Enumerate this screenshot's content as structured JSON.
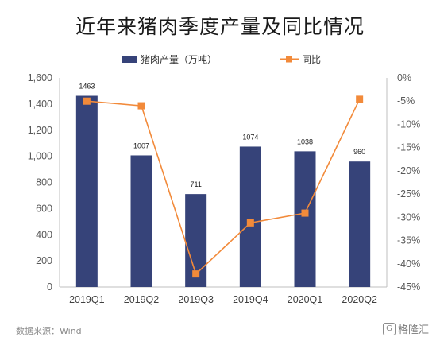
{
  "title": "近年来猪肉季度产量及同比情况",
  "chart_data": {
    "type": "bar",
    "categories": [
      "2019Q1",
      "2019Q2",
      "2019Q3",
      "2019Q4",
      "2020Q1",
      "2020Q2"
    ],
    "series": [
      {
        "name": "猪肉产量（万吨）",
        "type": "bar",
        "axis": "left",
        "color": "#364379",
        "values": [
          1463,
          1007,
          711,
          1074,
          1038,
          960
        ],
        "data_labels": [
          "1463",
          "1007",
          "711",
          "1074",
          "1038",
          "960"
        ]
      },
      {
        "name": "同比",
        "type": "line",
        "axis": "right",
        "color": "#F28A3A",
        "values": [
          -5.0,
          -6.0,
          -42.2,
          -31.2,
          -29.1,
          -4.6
        ]
      }
    ],
    "y_left": {
      "ylim": [
        0,
        1600
      ],
      "ticks": [
        0,
        200,
        400,
        600,
        800,
        1000,
        1200,
        1400,
        1600
      ],
      "tick_labels": [
        "0",
        "200",
        "400",
        "600",
        "800",
        "1,000",
        "1,200",
        "1,400",
        "1,600"
      ]
    },
    "y_right": {
      "ylim": [
        -45,
        0
      ],
      "ticks": [
        0,
        -5,
        -10,
        -15,
        -20,
        -25,
        -30,
        -35,
        -40,
        -45
      ],
      "tick_labels": [
        "0%",
        "-5%",
        "-10%",
        "-15%",
        "-20%",
        "-25%",
        "-30%",
        "-35%",
        "-40%",
        "-45%"
      ]
    },
    "legend_position": "top-center",
    "grid": false
  },
  "source_note": "数据来源：Wind",
  "brand": {
    "icon": "g-logo-icon",
    "icon_text": "G",
    "name": "格隆汇"
  }
}
